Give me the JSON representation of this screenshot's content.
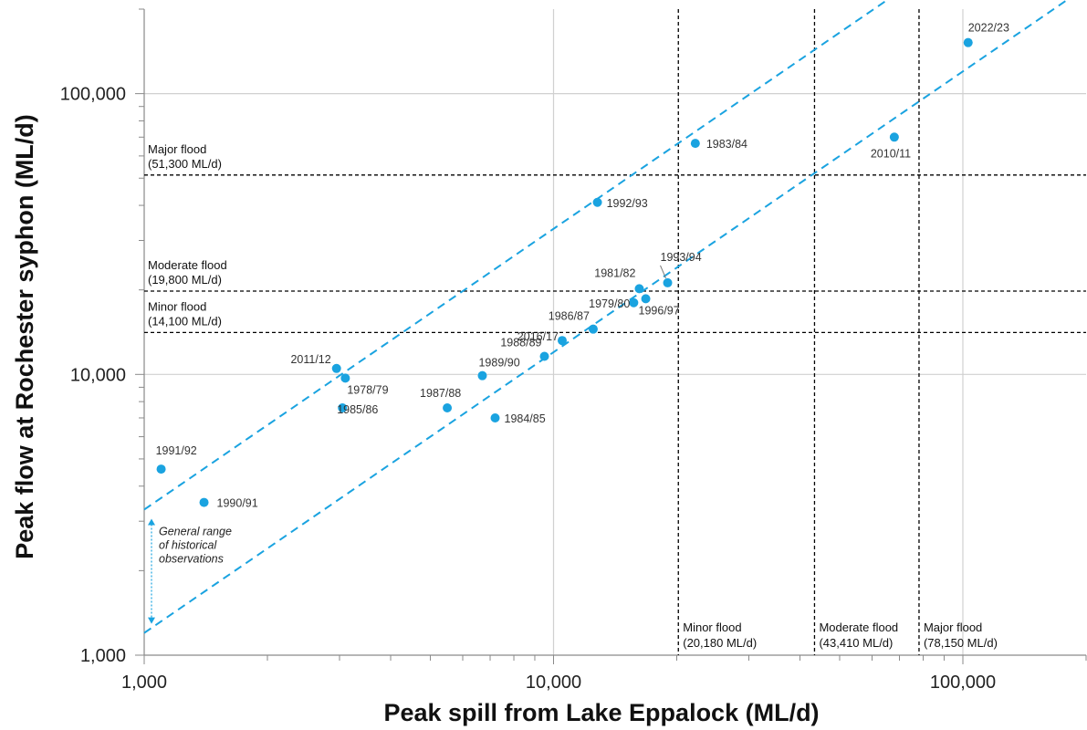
{
  "chart_data": {
    "type": "scatter",
    "title": "",
    "xlabel": "Peak spill from Lake Eppalock (ML/d)",
    "ylabel": "Peak flow at Rochester syphon (ML/d)",
    "xscale": "log",
    "yscale": "log",
    "xlim": [
      1000,
      200000
    ],
    "ylim": [
      1000,
      200000
    ],
    "x_ticks": [
      {
        "value": 1000,
        "label": "1,000"
      },
      {
        "value": 10000,
        "label": "10,000"
      },
      {
        "value": 100000,
        "label": "100,000"
      }
    ],
    "y_ticks": [
      {
        "value": 1000,
        "label": "1,000"
      },
      {
        "value": 10000,
        "label": "10,000"
      },
      {
        "value": 100000,
        "label": "100,000"
      }
    ],
    "grid": true,
    "colors": {
      "points": "#1AA3E0",
      "range_lines": "#1AA3E0",
      "thresholds": "#000000",
      "grid": "#D0D0D0"
    },
    "points": [
      {
        "label": "1991/92",
        "x": 1100,
        "y": 4600
      },
      {
        "label": "1990/91",
        "x": 1400,
        "y": 3500
      },
      {
        "label": "2011/12",
        "x": 2950,
        "y": 10500
      },
      {
        "label": "1978/79",
        "x": 3100,
        "y": 9700
      },
      {
        "label": "1985/86",
        "x": 3050,
        "y": 7600
      },
      {
        "label": "1987/88",
        "x": 5500,
        "y": 7600
      },
      {
        "label": "1989/90",
        "x": 6700,
        "y": 9900
      },
      {
        "label": "1984/85",
        "x": 7200,
        "y": 7000
      },
      {
        "label": "1988/89",
        "x": 9500,
        "y": 11600
      },
      {
        "label": "2016/17",
        "x": 10500,
        "y": 13200
      },
      {
        "label": "1986/87",
        "x": 12500,
        "y": 14500
      },
      {
        "label": "1992/93",
        "x": 12800,
        "y": 41000
      },
      {
        "label": "1979/80",
        "x": 15700,
        "y": 18000
      },
      {
        "label": "1981/82",
        "x": 16200,
        "y": 20200
      },
      {
        "label": "1996/97",
        "x": 16800,
        "y": 18600
      },
      {
        "label": "1993/94",
        "x": 19000,
        "y": 21200
      },
      {
        "label": "1983/84",
        "x": 22200,
        "y": 66500
      },
      {
        "label": "2010/11",
        "x": 68000,
        "y": 70000
      },
      {
        "label": "2022/23",
        "x": 103000,
        "y": 152000
      }
    ],
    "range_lines": [
      {
        "x0": 1000,
        "y0": 3300,
        "x1": 200000,
        "y1": 660000
      },
      {
        "x0": 1000,
        "y0": 1200,
        "x1": 200000,
        "y1": 240000
      }
    ],
    "horizontal_thresholds": [
      {
        "value": 51300,
        "name": "Major flood",
        "value_label": "(51,300 ML/d)"
      },
      {
        "value": 19800,
        "name": "Moderate flood",
        "value_label": "(19,800 ML/d)"
      },
      {
        "value": 14100,
        "name": "Minor flood",
        "value_label": "(14,100 ML/d)"
      }
    ],
    "vertical_thresholds": [
      {
        "value": 20180,
        "name": "Minor flood",
        "value_label": "(20,180 ML/d)"
      },
      {
        "value": 43410,
        "name": "Moderate flood",
        "value_label": "(43,410 ML/d)"
      },
      {
        "value": 78150,
        "name": "Major flood",
        "value_label": "(78,150 ML/d)"
      }
    ],
    "range_annotation": {
      "lines": [
        "General range",
        "of historical",
        "observations"
      ],
      "y_from": 1200,
      "y_to": 3300
    }
  }
}
